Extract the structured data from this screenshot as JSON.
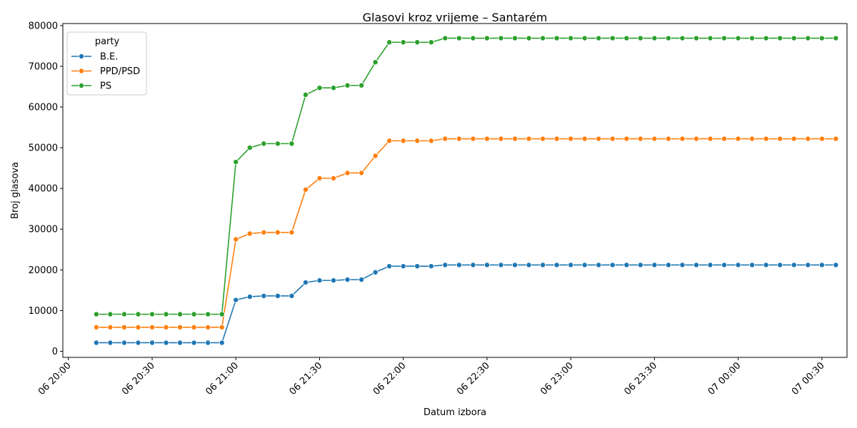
{
  "chart_data": {
    "type": "line",
    "title": "Glasovi kroz vrijeme – Santarém",
    "xlabel": "Datum izbora",
    "ylabel": "Broj glasova",
    "x_tick_labels": [
      "06 20:00",
      "06 20:30",
      "06 21:00",
      "06 21:30",
      "06 22:00",
      "06 22:30",
      "06 23:00",
      "06 23:30",
      "07 00:00",
      "07 00:30"
    ],
    "x_ticks": [
      "06 20:00",
      "06 20:30",
      "06 21:00",
      "06 21:30",
      "06 22:00",
      "06 22:30",
      "06 23:00",
      "06 23:30",
      "07 00:00",
      "07 00:30"
    ],
    "x_range": [
      "06 19:58",
      "07 00:39"
    ],
    "ylim": [
      -1500,
      80500
    ],
    "y_ticks": [
      0,
      10000,
      20000,
      30000,
      40000,
      50000,
      60000,
      70000,
      80000
    ],
    "grid": false,
    "legend": {
      "title": "party",
      "placement": "top-left"
    },
    "x": [
      "06 20:10",
      "06 20:15",
      "06 20:20",
      "06 20:25",
      "06 20:30",
      "06 20:35",
      "06 20:40",
      "06 20:45",
      "06 20:50",
      "06 20:55",
      "06 21:00",
      "06 21:05",
      "06 21:10",
      "06 21:15",
      "06 21:20",
      "06 21:25",
      "06 21:30",
      "06 21:35",
      "06 21:40",
      "06 21:45",
      "06 21:50",
      "06 21:55",
      "06 22:00",
      "06 22:05",
      "06 22:10",
      "06 22:15",
      "06 22:20",
      "06 22:25",
      "06 22:30",
      "06 22:35",
      "06 22:40",
      "06 22:45",
      "06 22:50",
      "06 22:55",
      "06 23:00",
      "06 23:05",
      "06 23:10",
      "06 23:15",
      "06 23:20",
      "06 23:25",
      "06 23:30",
      "06 23:35",
      "06 23:40",
      "06 23:45",
      "06 23:50",
      "06 23:55",
      "07 00:00",
      "07 00:05",
      "07 00:10",
      "07 00:15",
      "07 00:20",
      "07 00:25",
      "07 00:30",
      "07 00:35"
    ],
    "series": [
      {
        "name": "B.E.",
        "color": "#1f77b4",
        "values": [
          2100,
          2100,
          2100,
          2100,
          2100,
          2100,
          2100,
          2100,
          2100,
          2100,
          12600,
          13400,
          13600,
          13600,
          13600,
          16900,
          17400,
          17400,
          17600,
          17600,
          19400,
          20900,
          20900,
          20900,
          20900,
          21200,
          21200,
          21200,
          21200,
          21200,
          21200,
          21200,
          21200,
          21200,
          21200,
          21200,
          21200,
          21200,
          21200,
          21200,
          21200,
          21200,
          21200,
          21200,
          21200,
          21200,
          21200,
          21200,
          21200,
          21200,
          21200,
          21200,
          21200,
          21200
        ]
      },
      {
        "name": "PPD/PSD",
        "color": "#ff7f0e",
        "values": [
          5900,
          5900,
          5900,
          5900,
          5900,
          5900,
          5900,
          5900,
          5900,
          5900,
          27500,
          28900,
          29200,
          29200,
          29200,
          39700,
          42500,
          42500,
          43800,
          43800,
          48000,
          51700,
          51700,
          51700,
          51700,
          52200,
          52200,
          52200,
          52200,
          52200,
          52200,
          52200,
          52200,
          52200,
          52200,
          52200,
          52200,
          52200,
          52200,
          52200,
          52200,
          52200,
          52200,
          52200,
          52200,
          52200,
          52200,
          52200,
          52200,
          52200,
          52200,
          52200,
          52200,
          52200
        ]
      },
      {
        "name": "PS",
        "color": "#2ca02c",
        "values": [
          9100,
          9100,
          9100,
          9100,
          9100,
          9100,
          9100,
          9100,
          9100,
          9100,
          46500,
          50000,
          51000,
          51000,
          51000,
          63000,
          64700,
          64700,
          65300,
          65300,
          71000,
          75900,
          75900,
          75900,
          75900,
          76900,
          76900,
          76900,
          76900,
          76900,
          76900,
          76900,
          76900,
          76900,
          76900,
          76900,
          76900,
          76900,
          76900,
          76900,
          76900,
          76900,
          76900,
          76900,
          76900,
          76900,
          76900,
          76900,
          76900,
          76900,
          76900,
          76900,
          76900,
          76900
        ]
      }
    ]
  }
}
